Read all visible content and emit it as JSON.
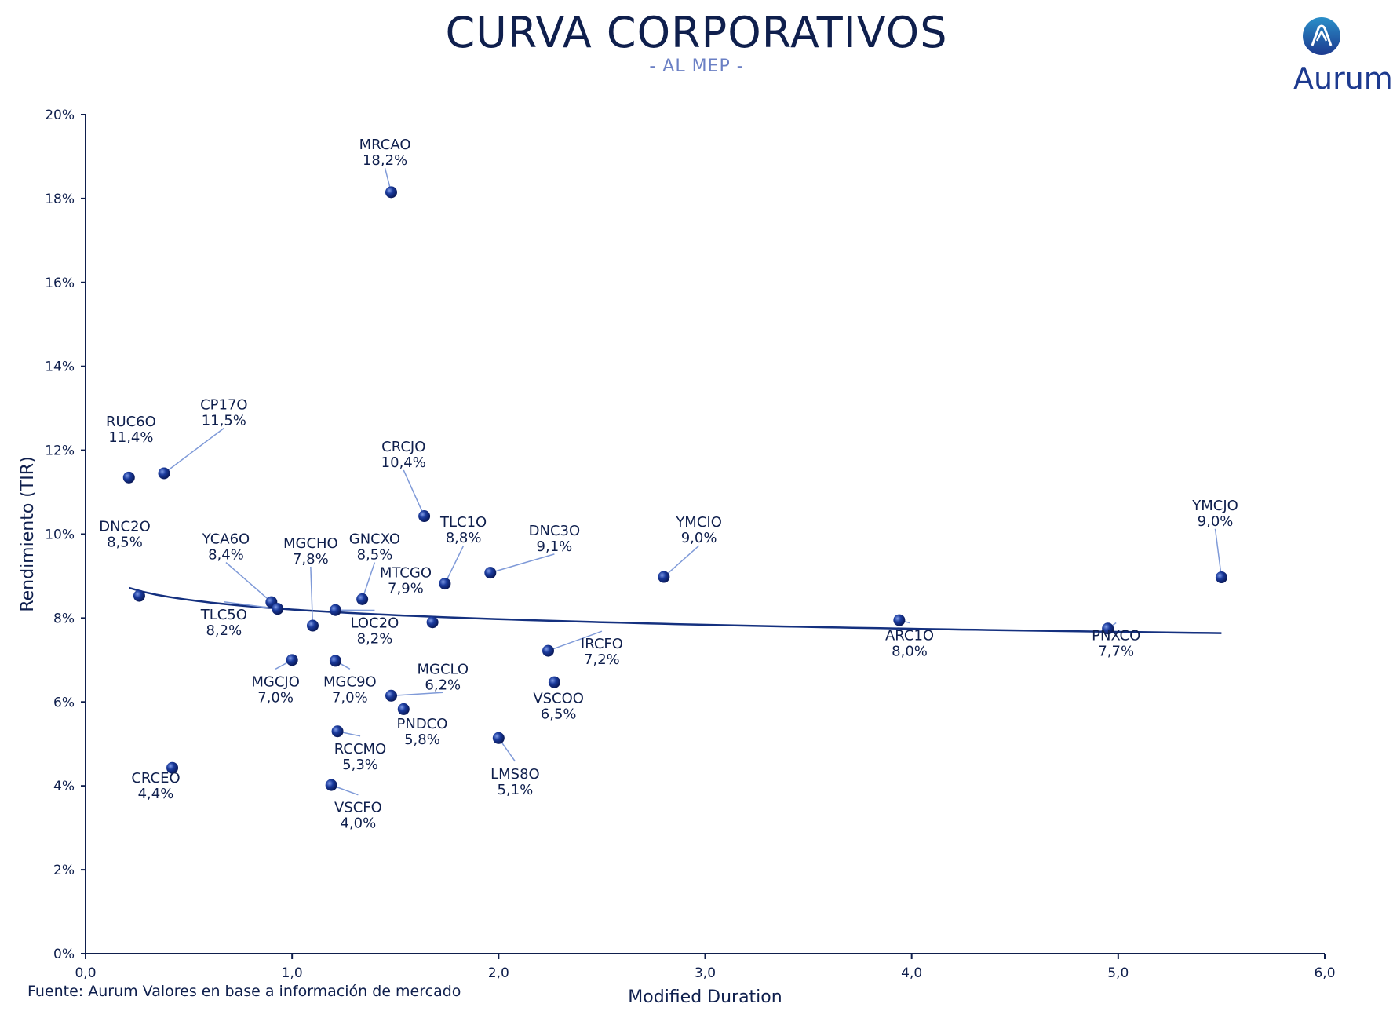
{
  "header": {
    "title": "CURVA CORPORATIVOS",
    "subtitle": "- AL MEP -",
    "logo_text": "Aurum",
    "logo_icon": "aurum-logo-icon"
  },
  "footer": {
    "source": "Fuente: Aurum Valores en base a información de mercado"
  },
  "colors": {
    "axis": "#0f1f4d",
    "point": "#1a3a9c",
    "trend": "#14307f",
    "leader": "#7f9ad8",
    "logo_accent": "#2a7fc1"
  },
  "chart_data": {
    "type": "scatter",
    "title": "CURVA CORPORATIVOS",
    "subtitle": "- AL MEP -",
    "xlabel": "Modified Duration",
    "ylabel": "Rendimiento (TIR)",
    "xlim": [
      0,
      6
    ],
    "ylim": [
      0,
      20
    ],
    "x_ticks": [
      "0,0",
      "1,0",
      "2,0",
      "3,0",
      "4,0",
      "5,0",
      "6,0"
    ],
    "y_ticks": [
      "0%",
      "2%",
      "4%",
      "6%",
      "8%",
      "10%",
      "12%",
      "14%",
      "16%",
      "18%",
      "20%"
    ],
    "grid": false,
    "points": [
      {
        "name": "MRCAO",
        "label": "18,2%",
        "x": 1.48,
        "y": 18.15,
        "lx": 1.45,
        "ly": 18.8,
        "leader": true
      },
      {
        "name": "CP17O",
        "label": "11,5%",
        "x": 0.38,
        "y": 11.45,
        "lx": 0.67,
        "ly": 12.6,
        "leader": true
      },
      {
        "name": "RUC6O",
        "label": "11,4%",
        "x": 0.21,
        "y": 11.35,
        "lx": 0.22,
        "ly": 12.2,
        "leader": false
      },
      {
        "name": "CRCJO",
        "label": "10,4%",
        "x": 1.64,
        "y": 10.43,
        "lx": 1.54,
        "ly": 11.6,
        "leader": true
      },
      {
        "name": "YMCJO",
        "label": "9,0%",
        "x": 5.5,
        "y": 8.97,
        "lx": 5.47,
        "ly": 10.2,
        "leader": true
      },
      {
        "name": "DNC3O",
        "label": "9,1%",
        "x": 1.96,
        "y": 9.08,
        "lx": 2.27,
        "ly": 9.6,
        "leader": true
      },
      {
        "name": "YMCIO",
        "label": "9,0%",
        "x": 2.8,
        "y": 8.98,
        "lx": 2.97,
        "ly": 9.8,
        "leader": true
      },
      {
        "name": "TLC1O",
        "label": "8,8%",
        "x": 1.74,
        "y": 8.82,
        "lx": 1.83,
        "ly": 9.8,
        "leader": true
      },
      {
        "name": "DNC2O",
        "label": "8,5%",
        "x": 0.26,
        "y": 8.53,
        "lx": 0.19,
        "ly": 9.7,
        "leader": false
      },
      {
        "name": "GNCXO",
        "label": "8,5%",
        "x": 1.34,
        "y": 8.45,
        "lx": 1.4,
        "ly": 9.4,
        "leader": true
      },
      {
        "name": "YCA6O",
        "label": "8,4%",
        "x": 0.9,
        "y": 8.38,
        "lx": 0.68,
        "ly": 9.4,
        "leader": true
      },
      {
        "name": "MGCHO",
        "label": "7,8%",
        "x": 1.1,
        "y": 7.82,
        "lx": 1.09,
        "ly": 9.3,
        "leader": true
      },
      {
        "name": "TLC5O",
        "label": "8,2%",
        "x": 0.93,
        "y": 8.22,
        "lx": 0.67,
        "ly": 7.6,
        "leader": true
      },
      {
        "name": "LOC2O",
        "label": "8,2%",
        "x": 1.21,
        "y": 8.19,
        "lx": 1.4,
        "ly": 7.4,
        "leader": true
      },
      {
        "name": "MTCGO",
        "label": "7,9%",
        "x": 1.68,
        "y": 7.9,
        "lx": 1.55,
        "ly": 8.6,
        "leader": false
      },
      {
        "name": "ARC1O",
        "label": "8,0%",
        "x": 3.94,
        "y": 7.95,
        "lx": 3.99,
        "ly": 7.1,
        "leader": true
      },
      {
        "name": "PNXCO",
        "label": "7,7%",
        "x": 4.95,
        "y": 7.75,
        "lx": 4.99,
        "ly": 7.1,
        "leader": true
      },
      {
        "name": "IRCFO",
        "label": "7,2%",
        "x": 2.24,
        "y": 7.22,
        "lx": 2.5,
        "ly": 6.9,
        "leader": true
      },
      {
        "name": "MGCJO",
        "label": "7,0%",
        "x": 1.0,
        "y": 7.0,
        "lx": 0.92,
        "ly": 6.0,
        "leader": true
      },
      {
        "name": "MGC9O",
        "label": "7,0%",
        "x": 1.21,
        "y": 6.98,
        "lx": 1.28,
        "ly": 6.0,
        "leader": true
      },
      {
        "name": "VSCOO",
        "label": "6,5%",
        "x": 2.27,
        "y": 6.47,
        "lx": 2.29,
        "ly": 5.6,
        "leader": true
      },
      {
        "name": "MGCLO",
        "label": "6,2%",
        "x": 1.48,
        "y": 6.15,
        "lx": 1.73,
        "ly": 6.3,
        "leader": true
      },
      {
        "name": "PNDCO",
        "label": "5,8%",
        "x": 1.54,
        "y": 5.83,
        "lx": 1.63,
        "ly": 5.0,
        "leader": false
      },
      {
        "name": "RCCMO",
        "label": "5,3%",
        "x": 1.22,
        "y": 5.3,
        "lx": 1.33,
        "ly": 4.4,
        "leader": true
      },
      {
        "name": "LMS8O",
        "label": "5,1%",
        "x": 2.0,
        "y": 5.14,
        "lx": 2.08,
        "ly": 3.8,
        "leader": true
      },
      {
        "name": "CRCEO",
        "label": "4,4%",
        "x": 0.42,
        "y": 4.43,
        "lx": 0.34,
        "ly": 3.7,
        "leader": false
      },
      {
        "name": "VSCFO",
        "label": "4,0%",
        "x": 1.19,
        "y": 4.02,
        "lx": 1.32,
        "ly": 3.0,
        "leader": true
      }
    ],
    "trendline": {
      "type": "logarithmic",
      "x_start": 0.21,
      "x_end": 5.5,
      "y_at_start": 8.72,
      "y_at_end": 7.64
    }
  }
}
